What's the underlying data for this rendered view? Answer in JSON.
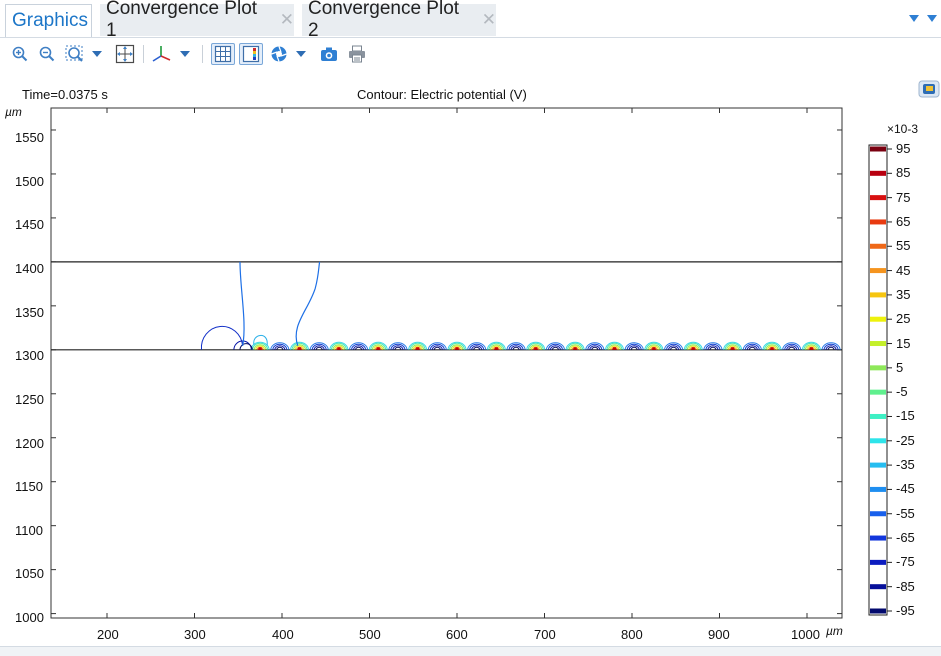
{
  "tabs": [
    {
      "label": "Graphics",
      "active": true
    },
    {
      "label": "Convergence Plot 1",
      "active": false
    },
    {
      "label": "Convergence Plot 2",
      "active": false
    }
  ],
  "toolbar": {
    "icons": [
      "zoom-in-icon",
      "zoom-out-icon",
      "zoom-box-icon",
      "dropdown-arrow-icon",
      "zoom-extents-icon",
      "axis-orientation-icon",
      "dropdown-arrow-icon",
      "grid-toggle-icon",
      "legend-toggle-icon",
      "scene-light-icon",
      "dropdown-arrow-icon",
      "camera-icon",
      "print-icon"
    ]
  },
  "plot": {
    "time_label": "Time=0.0375 s",
    "title": "Contour: Electric potential (V)",
    "y_unit": "µm",
    "x_unit": "µm",
    "x_ticks": [
      "200",
      "300",
      "400",
      "500",
      "600",
      "700",
      "800",
      "900",
      "1000"
    ],
    "y_ticks": [
      "1550",
      "1500",
      "1450",
      "1400",
      "1350",
      "1300",
      "1250",
      "1200",
      "1150",
      "1100",
      "1050",
      "1000"
    ]
  },
  "chart_data": {
    "type": "contour",
    "title": "Contour: Electric potential (V)",
    "subtitle": "Time=0.0375 s",
    "xlabel": "µm",
    "ylabel": "µm",
    "xlim": [
      136,
      1040
    ],
    "ylim": [
      995,
      1575
    ],
    "domain_lines_y": [
      1400,
      1300
    ],
    "electrode_x": [
      375,
      420,
      465,
      510,
      555,
      600,
      645,
      690,
      735,
      780,
      825,
      870,
      915,
      960,
      1005
    ],
    "colorbar": {
      "multiplier": "×10-3",
      "ticks": [
        "95",
        "85",
        "75",
        "65",
        "55",
        "45",
        "35",
        "25",
        "15",
        "5",
        "-5",
        "-15",
        "-25",
        "-35",
        "-45",
        "-55",
        "-65",
        "-75",
        "-85",
        "-95"
      ],
      "colors": [
        "#7a0010",
        "#b80010",
        "#d81010",
        "#e83a10",
        "#ef6818",
        "#f5941e",
        "#f6c510",
        "#eef20c",
        "#c4f02a",
        "#8ee85a",
        "#5ff08e",
        "#3ef0c4",
        "#2ee4ea",
        "#26bdf0",
        "#1e8ef0",
        "#1860ec",
        "#1236dc",
        "#0c1cc0",
        "#07109a",
        "#030a6e"
      ]
    }
  }
}
